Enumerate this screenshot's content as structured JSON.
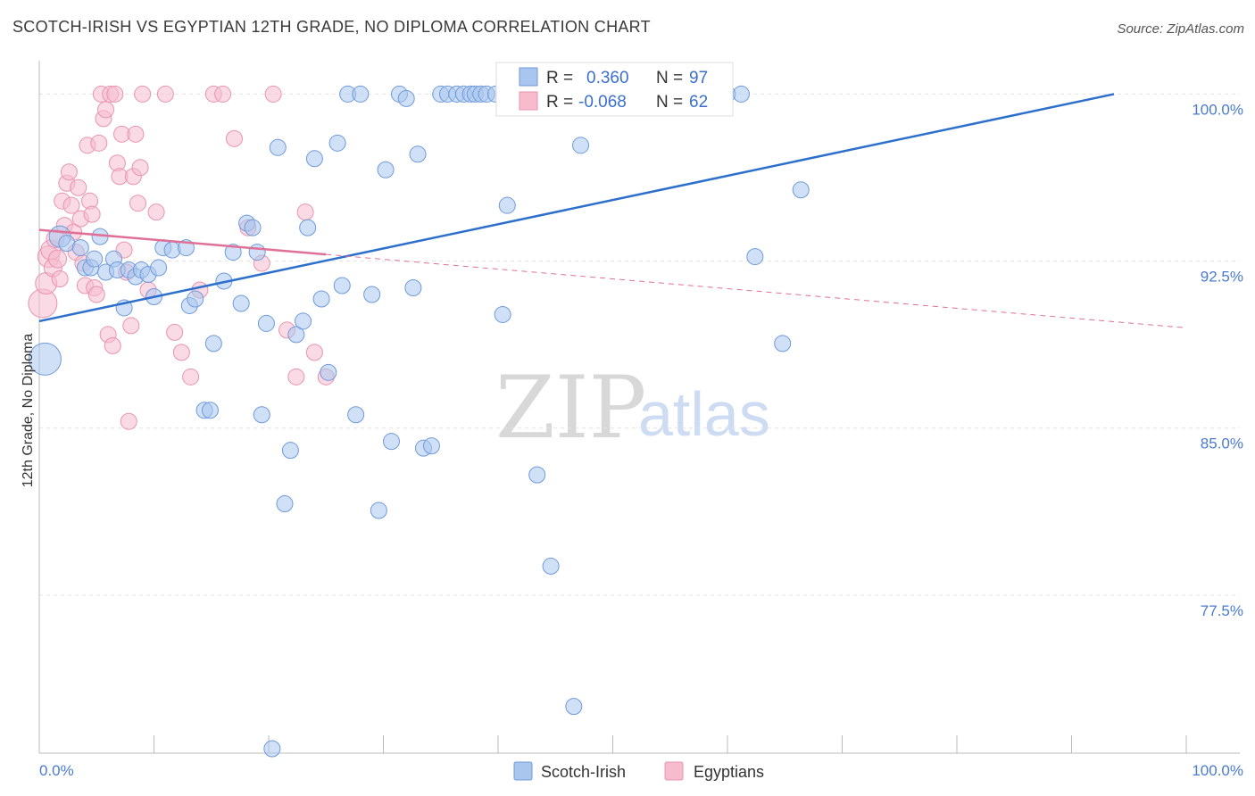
{
  "title": "SCOTCH-IRISH VS EGYPTIAN 12TH GRADE, NO DIPLOMA CORRELATION CHART",
  "source": "Source: ZipAtlas.com",
  "watermark": {
    "zip": "ZIP",
    "atlas": "atlas"
  },
  "colors": {
    "blue_fill": "#a9c6ef",
    "blue_stroke": "#6f9ad9",
    "blue_line": "#2d6fcc",
    "pink_fill": "#f6bccd",
    "pink_stroke": "#e894ae",
    "pink_line": "#e07098",
    "grid": "#e3e3e3",
    "tick_label": "#4a7bd0"
  },
  "chart_data": {
    "type": "scatter",
    "title": "SCOTCH-IRISH VS EGYPTIAN 12TH GRADE, NO DIPLOMA CORRELATION CHART",
    "xlabel": "",
    "ylabel": "12th Grade, No Diploma",
    "xlim": [
      0,
      100
    ],
    "ylim": [
      70.4,
      101.5
    ],
    "x_tick_labels": [
      "0.0%",
      "100.0%"
    ],
    "y_ticks": [
      77.5,
      85.0,
      92.5,
      100.0
    ],
    "y_tick_labels": [
      "77.5%",
      "85.0%",
      "92.5%",
      "100.0%"
    ],
    "grid": true,
    "legend_position": "top-center",
    "legend": [
      {
        "series": "Scotch-Irish",
        "r_label": "R =",
        "r_value": "0.360",
        "n_label": "N =",
        "n_value": "97"
      },
      {
        "series": "Egyptians",
        "r_label": "R =",
        "r_value": "-0.068",
        "n_label": "N =",
        "n_value": "62"
      }
    ],
    "series": [
      {
        "name": "Scotch-Irish",
        "color": "#a9c6ef",
        "trend": {
          "x0": 0.0,
          "y0": 89.8,
          "x1": 93.7,
          "y1": 100.0,
          "dashed_to": null
        },
        "points": [
          [
            0.5,
            88.1,
            18
          ],
          [
            1.8,
            93.6,
            12
          ],
          [
            2.4,
            93.3,
            9
          ],
          [
            3.6,
            93.1,
            9
          ],
          [
            5.3,
            93.6,
            9
          ],
          [
            4.0,
            92.2,
            9
          ],
          [
            4.5,
            92.2,
            9
          ],
          [
            4.8,
            92.6,
            9
          ],
          [
            5.8,
            92.0,
            9
          ],
          [
            6.5,
            92.6,
            9
          ],
          [
            6.8,
            92.1,
            9
          ],
          [
            7.4,
            90.4,
            9
          ],
          [
            7.8,
            92.1,
            9
          ],
          [
            8.4,
            91.8,
            9
          ],
          [
            8.9,
            92.1,
            9
          ],
          [
            9.5,
            91.9,
            9
          ],
          [
            10.0,
            90.9,
            9
          ],
          [
            10.4,
            92.2,
            9
          ],
          [
            10.8,
            93.1,
            9
          ],
          [
            11.6,
            93.0,
            9
          ],
          [
            12.8,
            93.1,
            9
          ],
          [
            13.1,
            90.5,
            9
          ],
          [
            13.6,
            90.8,
            9
          ],
          [
            14.4,
            85.8,
            9
          ],
          [
            14.9,
            85.8,
            9
          ],
          [
            15.2,
            88.8,
            9
          ],
          [
            16.1,
            91.6,
            9
          ],
          [
            16.9,
            92.9,
            9
          ],
          [
            17.6,
            90.6,
            9
          ],
          [
            18.1,
            94.2,
            9
          ],
          [
            18.6,
            94.0,
            9
          ],
          [
            19.0,
            92.9,
            9
          ],
          [
            19.4,
            85.6,
            9
          ],
          [
            19.8,
            89.7,
            9
          ],
          [
            20.3,
            70.6,
            9
          ],
          [
            20.8,
            97.6,
            9
          ],
          [
            21.4,
            81.6,
            9
          ],
          [
            21.9,
            84.0,
            9
          ],
          [
            22.4,
            89.2,
            9
          ],
          [
            23.0,
            89.8,
            9
          ],
          [
            23.4,
            94.0,
            9
          ],
          [
            24.0,
            97.1,
            9
          ],
          [
            24.6,
            90.8,
            9
          ],
          [
            25.2,
            87.5,
            9
          ],
          [
            26.0,
            97.8,
            9
          ],
          [
            26.4,
            91.4,
            9
          ],
          [
            26.9,
            100.0,
            9
          ],
          [
            27.6,
            85.6,
            9
          ],
          [
            28.0,
            100.0,
            9
          ],
          [
            29.0,
            91.0,
            9
          ],
          [
            29.6,
            81.3,
            9
          ],
          [
            30.2,
            96.6,
            9
          ],
          [
            30.7,
            84.4,
            9
          ],
          [
            31.4,
            100.0,
            9
          ],
          [
            32.0,
            99.8,
            9
          ],
          [
            32.6,
            91.3,
            9
          ],
          [
            33.0,
            97.3,
            9
          ],
          [
            33.5,
            84.1,
            9
          ],
          [
            34.2,
            84.2,
            9
          ],
          [
            35.0,
            100.0,
            9
          ],
          [
            35.6,
            100.0,
            9
          ],
          [
            36.4,
            100.0,
            9
          ],
          [
            37.0,
            100.0,
            9
          ],
          [
            37.6,
            100.0,
            9
          ],
          [
            38.0,
            100.0,
            9
          ],
          [
            38.5,
            100.0,
            9
          ],
          [
            39.0,
            100.0,
            9
          ],
          [
            39.8,
            100.0,
            9
          ],
          [
            40.4,
            90.1,
            9
          ],
          [
            40.8,
            95.0,
            9
          ],
          [
            41.6,
            100.0,
            9
          ],
          [
            42.2,
            100.0,
            9
          ],
          [
            42.8,
            100.0,
            9
          ],
          [
            43.4,
            82.9,
            9
          ],
          [
            44.0,
            100.0,
            9
          ],
          [
            44.6,
            78.8,
            9
          ],
          [
            45.2,
            100.0,
            9
          ],
          [
            45.9,
            100.0,
            9
          ],
          [
            46.6,
            72.5,
            9
          ],
          [
            47.2,
            97.7,
            9
          ],
          [
            48.0,
            100.0,
            9
          ],
          [
            48.8,
            100.0,
            9
          ],
          [
            49.6,
            100.0,
            9
          ],
          [
            50.4,
            100.0,
            9
          ],
          [
            51.6,
            100.0,
            9
          ],
          [
            52.6,
            100.0,
            9
          ],
          [
            53.6,
            100.0,
            9
          ],
          [
            54.6,
            100.0,
            9
          ],
          [
            55.6,
            100.0,
            9
          ],
          [
            56.6,
            100.0,
            9
          ],
          [
            57.6,
            100.0,
            9
          ],
          [
            58.8,
            100.0,
            9
          ],
          [
            60.0,
            100.0,
            9
          ],
          [
            61.2,
            100.0,
            9
          ],
          [
            62.4,
            92.7,
            9
          ],
          [
            64.8,
            88.8,
            9
          ],
          [
            66.4,
            95.7,
            9
          ]
        ]
      },
      {
        "name": "Egyptians",
        "color": "#f6bccd",
        "trend": {
          "x0": 0.0,
          "y0": 93.9,
          "x1": 25.0,
          "y1": 92.8,
          "dashed_to": [
            100.0,
            89.5
          ]
        },
        "points": [
          [
            0.3,
            90.6,
            16
          ],
          [
            0.6,
            91.5,
            12
          ],
          [
            0.8,
            92.7,
            12
          ],
          [
            1.0,
            93.0,
            11
          ],
          [
            1.2,
            92.2,
            10
          ],
          [
            1.4,
            93.5,
            10
          ],
          [
            1.6,
            92.6,
            10
          ],
          [
            1.8,
            91.7,
            9
          ],
          [
            2.0,
            95.2,
            9
          ],
          [
            2.2,
            94.1,
            9
          ],
          [
            2.4,
            96.0,
            9
          ],
          [
            2.6,
            96.5,
            9
          ],
          [
            2.8,
            95.0,
            9
          ],
          [
            3.0,
            93.8,
            9
          ],
          [
            3.2,
            92.9,
            9
          ],
          [
            3.4,
            95.8,
            9
          ],
          [
            3.6,
            94.4,
            9
          ],
          [
            3.8,
            92.4,
            9
          ],
          [
            4.0,
            91.4,
            9
          ],
          [
            4.2,
            97.7,
            9
          ],
          [
            4.4,
            95.2,
            9
          ],
          [
            4.6,
            94.6,
            9
          ],
          [
            4.8,
            91.3,
            9
          ],
          [
            5.0,
            91.0,
            9
          ],
          [
            5.2,
            97.8,
            9
          ],
          [
            5.4,
            100.0,
            9
          ],
          [
            5.6,
            98.9,
            9
          ],
          [
            5.8,
            99.3,
            9
          ],
          [
            6.0,
            89.2,
            9
          ],
          [
            6.2,
            100.0,
            9
          ],
          [
            6.4,
            88.7,
            9
          ],
          [
            6.6,
            100.0,
            9
          ],
          [
            6.8,
            96.9,
            9
          ],
          [
            7.0,
            96.3,
            9
          ],
          [
            7.2,
            98.2,
            9
          ],
          [
            7.4,
            93.0,
            9
          ],
          [
            7.6,
            92.0,
            9
          ],
          [
            7.8,
            85.3,
            9
          ],
          [
            8.0,
            89.6,
            9
          ],
          [
            8.2,
            96.3,
            9
          ],
          [
            8.4,
            98.2,
            9
          ],
          [
            8.6,
            95.1,
            9
          ],
          [
            8.8,
            96.7,
            9
          ],
          [
            9.0,
            100.0,
            9
          ],
          [
            9.5,
            91.2,
            9
          ],
          [
            10.2,
            94.7,
            9
          ],
          [
            11.0,
            100.0,
            9
          ],
          [
            11.8,
            89.3,
            9
          ],
          [
            12.4,
            88.4,
            9
          ],
          [
            13.2,
            87.3,
            9
          ],
          [
            14.0,
            91.2,
            9
          ],
          [
            15.2,
            100.0,
            9
          ],
          [
            16.0,
            100.0,
            9
          ],
          [
            17.0,
            98.0,
            9
          ],
          [
            18.2,
            94.0,
            9
          ],
          [
            19.4,
            92.4,
            9
          ],
          [
            20.4,
            100.0,
            9
          ],
          [
            21.6,
            89.4,
            9
          ],
          [
            22.4,
            87.3,
            9
          ],
          [
            23.2,
            94.7,
            9
          ],
          [
            24.0,
            88.4,
            9
          ],
          [
            25.0,
            87.3,
            9
          ]
        ]
      }
    ]
  }
}
